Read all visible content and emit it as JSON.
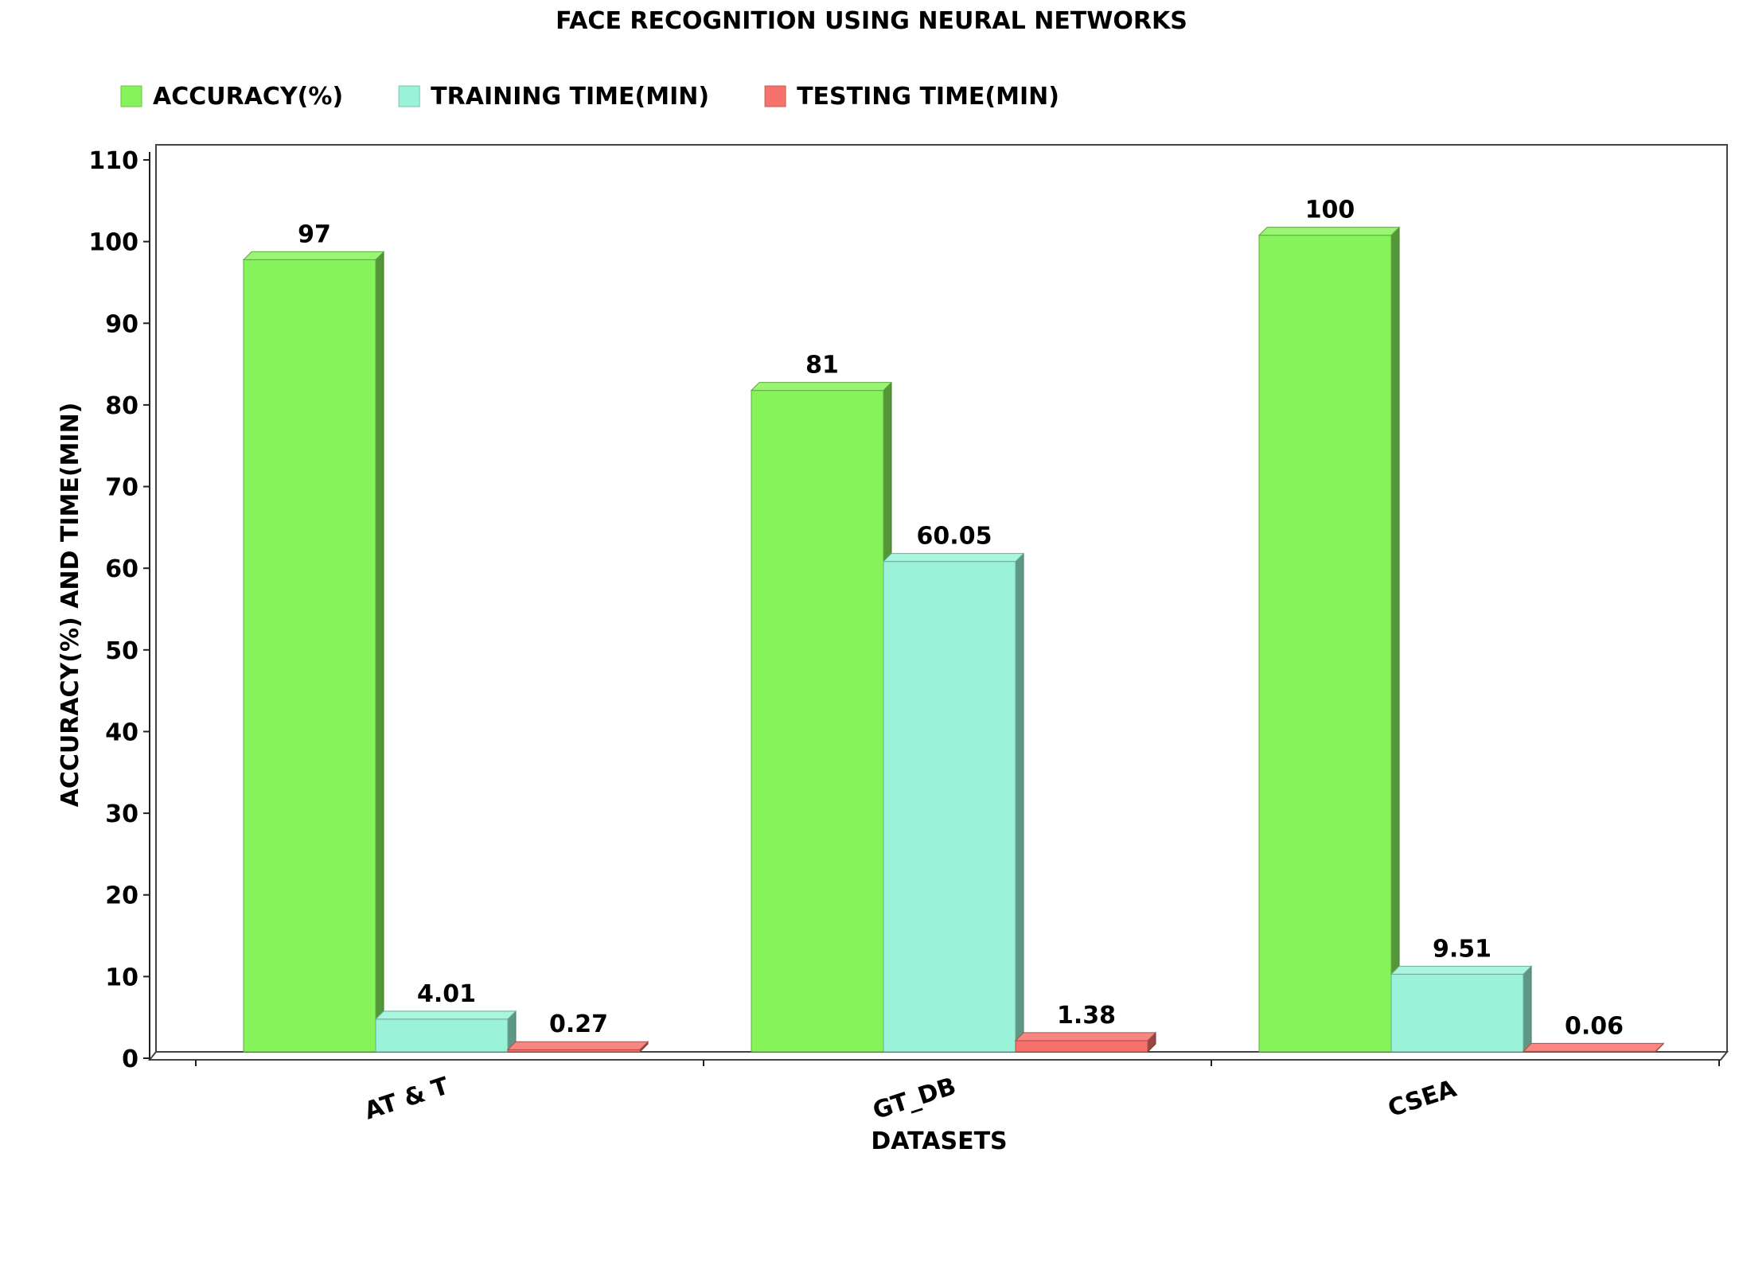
{
  "chart_data": {
    "type": "bar",
    "title": "FACE RECOGNITION USING NEURAL NETWORKS",
    "xlabel": "DATASETS",
    "ylabel": "ACCURACY(%) AND TIME(MIN)",
    "categories": [
      "AT & T",
      "GT_DB",
      "CSEA"
    ],
    "series": [
      {
        "name": "ACCURACY(%)",
        "values": [
          97,
          81,
          100
        ],
        "labels": [
          "97",
          "81",
          "100"
        ],
        "color": "#87f35a"
      },
      {
        "name": "TRAINING TIME(MIN)",
        "values": [
          4.01,
          60.05,
          9.51
        ],
        "labels": [
          "4.01",
          "60.05",
          "9.51"
        ],
        "color": "#9af3d8"
      },
      {
        "name": "TESTING TIME(MIN)",
        "values": [
          0.27,
          1.38,
          0.06
        ],
        "labels": [
          "0.27",
          "1.38",
          "0.06"
        ],
        "color": "#f7726c"
      }
    ],
    "ylim": [
      0,
      110
    ],
    "yticks": [
      "0",
      "10",
      "20",
      "30",
      "40",
      "50",
      "60",
      "70",
      "80",
      "90",
      "100",
      "110"
    ],
    "grid": false,
    "legend_position": "top-left",
    "style": "3d-bar"
  }
}
